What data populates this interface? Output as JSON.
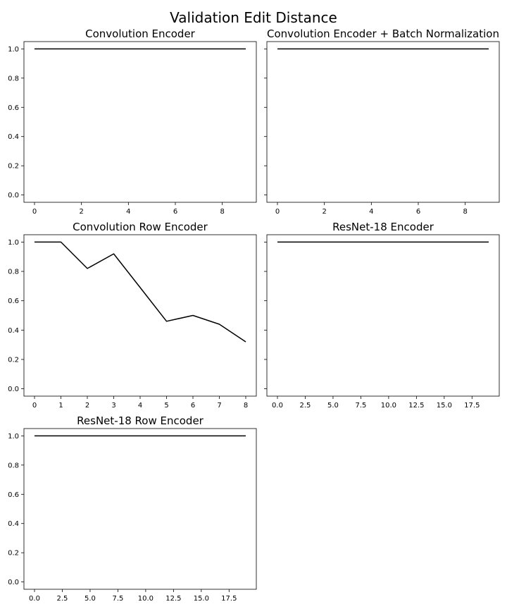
{
  "figure": {
    "title": "Validation Edit Distance"
  },
  "chart_data": [
    {
      "type": "line",
      "title": "Convolution Encoder",
      "x": [
        0,
        1,
        2,
        3,
        4,
        5,
        6,
        7,
        8,
        9
      ],
      "series": [
        {
          "values": [
            1.0,
            1.0,
            1.0,
            1.0,
            1.0,
            1.0,
            1.0,
            1.0,
            1.0,
            1.0
          ],
          "color": "#000000"
        }
      ],
      "xticks": [
        0,
        2,
        4,
        6,
        8
      ],
      "xtick_labels": [
        "0",
        "2",
        "4",
        "6",
        "8"
      ],
      "yticks": [
        0.0,
        0.2,
        0.4,
        0.6,
        0.8,
        1.0
      ],
      "ytick_labels": [
        "0.0",
        "0.2",
        "0.4",
        "0.6",
        "0.8",
        "1.0"
      ],
      "show_ytick_labels": true,
      "xlim": [
        -0.45,
        9.45
      ],
      "ylim": [
        -0.05,
        1.05
      ],
      "grid": false
    },
    {
      "type": "line",
      "title": "Convolution Encoder + Batch Normalization",
      "x": [
        0,
        1,
        2,
        3,
        4,
        5,
        6,
        7,
        8,
        9
      ],
      "series": [
        {
          "values": [
            1.0,
            1.0,
            1.0,
            1.0,
            1.0,
            1.0,
            1.0,
            1.0,
            1.0,
            1.0
          ],
          "color": "#000000"
        }
      ],
      "xticks": [
        0,
        2,
        4,
        6,
        8
      ],
      "xtick_labels": [
        "0",
        "2",
        "4",
        "6",
        "8"
      ],
      "yticks": [
        0.0,
        0.2,
        0.4,
        0.6,
        0.8,
        1.0
      ],
      "ytick_labels": [
        "",
        "",
        "",
        "",
        "",
        ""
      ],
      "show_ytick_labels": false,
      "xlim": [
        -0.45,
        9.45
      ],
      "ylim": [
        -0.05,
        1.05
      ],
      "grid": false
    },
    {
      "type": "line",
      "title": "Convolution Row Encoder",
      "x": [
        0,
        1,
        2,
        3,
        4,
        5,
        6,
        7,
        8
      ],
      "series": [
        {
          "values": [
            1.0,
            1.0,
            0.82,
            0.92,
            0.69,
            0.46,
            0.5,
            0.44,
            0.32
          ],
          "color": "#000000"
        }
      ],
      "xticks": [
        0,
        1,
        2,
        3,
        4,
        5,
        6,
        7,
        8
      ],
      "xtick_labels": [
        "0",
        "1",
        "2",
        "3",
        "4",
        "5",
        "6",
        "7",
        "8"
      ],
      "yticks": [
        0.0,
        0.2,
        0.4,
        0.6,
        0.8,
        1.0
      ],
      "ytick_labels": [
        "0.0",
        "0.2",
        "0.4",
        "0.6",
        "0.8",
        "1.0"
      ],
      "show_ytick_labels": true,
      "xlim": [
        -0.4,
        8.4
      ],
      "ylim": [
        -0.05,
        1.05
      ],
      "grid": false
    },
    {
      "type": "line",
      "title": "ResNet-18 Encoder",
      "x": [
        0,
        1,
        2,
        3,
        4,
        5,
        6,
        7,
        8,
        9,
        10,
        11,
        12,
        13,
        14,
        15,
        16,
        17,
        18,
        19
      ],
      "series": [
        {
          "values": [
            1.0,
            1.0,
            1.0,
            1.0,
            1.0,
            1.0,
            1.0,
            1.0,
            1.0,
            1.0,
            1.0,
            1.0,
            1.0,
            1.0,
            1.0,
            1.0,
            1.0,
            1.0,
            1.0,
            1.0
          ],
          "color": "#000000"
        }
      ],
      "xticks": [
        0,
        2.5,
        5,
        7.5,
        10,
        12.5,
        15,
        17.5
      ],
      "xtick_labels": [
        "0.0",
        "2.5",
        "5.0",
        "7.5",
        "10.0",
        "12.5",
        "15.0",
        "17.5"
      ],
      "yticks": [
        0.0,
        0.2,
        0.4,
        0.6,
        0.8,
        1.0
      ],
      "ytick_labels": [
        "",
        "",
        "",
        "",
        "",
        ""
      ],
      "show_ytick_labels": false,
      "xlim": [
        -0.95,
        19.95
      ],
      "ylim": [
        -0.05,
        1.05
      ],
      "grid": false
    },
    {
      "type": "line",
      "title": "ResNet-18 Row Encoder",
      "x": [
        0,
        1,
        2,
        3,
        4,
        5,
        6,
        7,
        8,
        9,
        10,
        11,
        12,
        13,
        14,
        15,
        16,
        17,
        18,
        19
      ],
      "series": [
        {
          "values": [
            1.0,
            1.0,
            1.0,
            1.0,
            1.0,
            1.0,
            1.0,
            1.0,
            1.0,
            1.0,
            1.0,
            1.0,
            1.0,
            1.0,
            1.0,
            1.0,
            1.0,
            1.0,
            1.0,
            1.0
          ],
          "color": "#000000"
        }
      ],
      "xticks": [
        0,
        2.5,
        5,
        7.5,
        10,
        12.5,
        15,
        17.5
      ],
      "xtick_labels": [
        "0.0",
        "2.5",
        "5.0",
        "7.5",
        "10.0",
        "12.5",
        "15.0",
        "17.5"
      ],
      "yticks": [
        0.0,
        0.2,
        0.4,
        0.6,
        0.8,
        1.0
      ],
      "ytick_labels": [
        "0.0",
        "0.2",
        "0.4",
        "0.6",
        "0.8",
        "1.0"
      ],
      "show_ytick_labels": true,
      "xlim": [
        -0.95,
        19.95
      ],
      "ylim": [
        -0.05,
        1.05
      ],
      "grid": false
    }
  ]
}
